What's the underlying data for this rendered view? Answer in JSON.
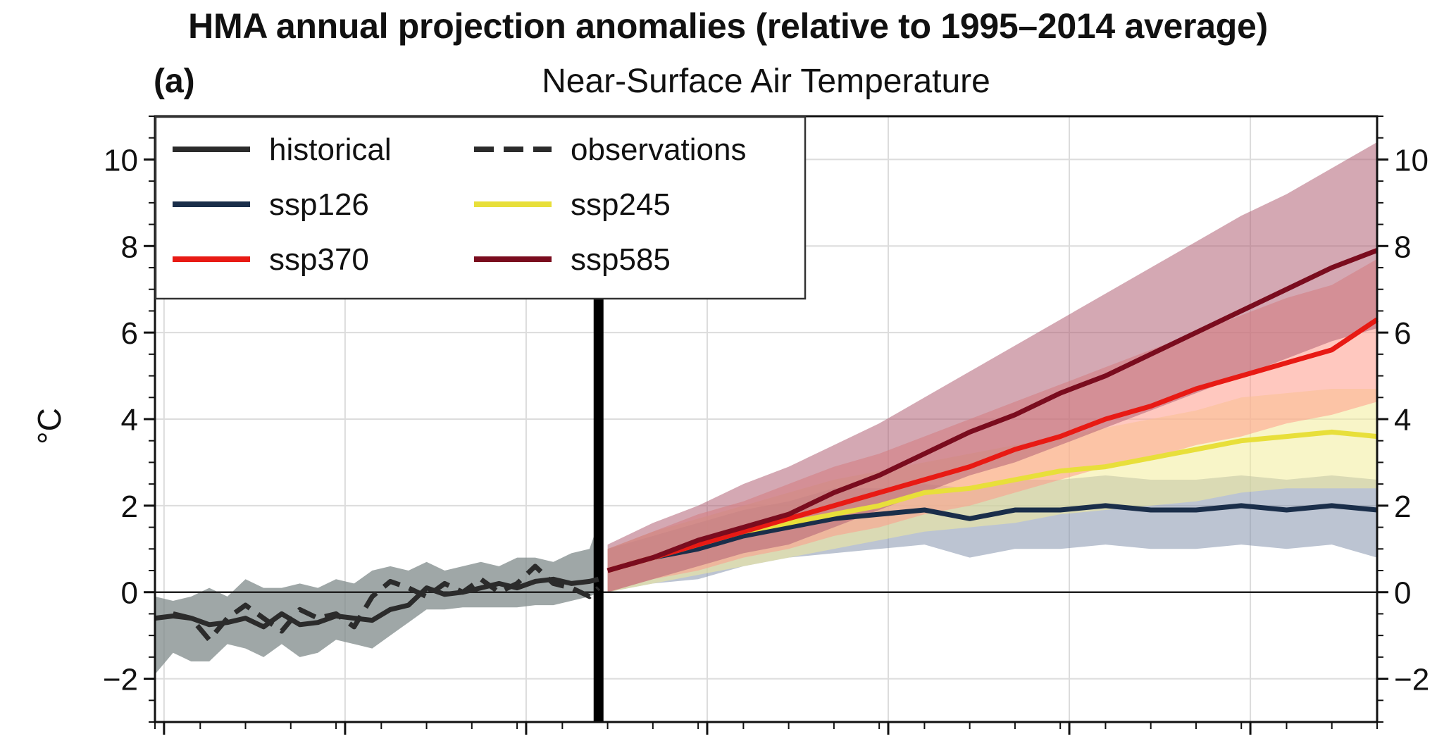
{
  "figure": {
    "title": "HMA annual projection anomalies (relative to 1995–2014 average)",
    "panel_label": "(a)",
    "subtitle": "Near-Surface Air Temperature"
  },
  "chart_data": {
    "type": "line",
    "title": "Near-Surface Air Temperature",
    "xlabel": "",
    "ylabel": "°C",
    "xlim": [
      1965,
      2100
    ],
    "ylim": [
      -3,
      11
    ],
    "yticks": [
      -2,
      0,
      2,
      4,
      6,
      8,
      10
    ],
    "ytick_labels": [
      "−2",
      "0",
      "2",
      "4",
      "6",
      "8",
      "10"
    ],
    "xticks_major": [
      1966,
      1986,
      2006,
      2026,
      2046,
      2066,
      2086
    ],
    "grid": true,
    "zero_line": 0,
    "vertical_marker_x": 2014,
    "legend": {
      "placement": "top-left",
      "columns": 2
    },
    "series": [
      {
        "name": "historical",
        "color": "#2b2b2b",
        "style": "solid",
        "band_color": "#7f8a8a",
        "x": [
          1965,
          1967,
          1969,
          1971,
          1973,
          1975,
          1977,
          1979,
          1981,
          1983,
          1985,
          1987,
          1989,
          1991,
          1993,
          1995,
          1997,
          1999,
          2001,
          2003,
          2005,
          2007,
          2009,
          2011,
          2013,
          2014
        ],
        "y": [
          -0.6,
          -0.55,
          -0.6,
          -0.75,
          -0.7,
          -0.6,
          -0.8,
          -0.5,
          -0.75,
          -0.7,
          -0.55,
          -0.6,
          -0.65,
          -0.4,
          -0.3,
          0.1,
          -0.05,
          0.0,
          0.1,
          0.2,
          0.1,
          0.25,
          0.3,
          0.2,
          0.25,
          0.3
        ],
        "lower": [
          -1.9,
          -1.4,
          -1.6,
          -1.6,
          -1.2,
          -1.3,
          -1.5,
          -1.2,
          -1.5,
          -1.4,
          -1.1,
          -1.2,
          -1.3,
          -1.0,
          -0.7,
          -0.4,
          -0.4,
          -0.35,
          -0.35,
          -0.35,
          -0.35,
          -0.3,
          -0.3,
          -0.2,
          -0.1,
          0.0
        ],
        "upper": [
          -0.1,
          -0.2,
          -0.1,
          0.1,
          -0.1,
          0.3,
          0.1,
          0.1,
          0.2,
          0.1,
          0.3,
          0.2,
          0.5,
          0.6,
          0.5,
          0.7,
          0.5,
          0.6,
          0.7,
          0.6,
          0.8,
          0.8,
          0.7,
          0.9,
          1.0,
          1.6
        ]
      },
      {
        "name": "observations",
        "color": "#2b2b2b",
        "style": "dashed",
        "x": [
          1967,
          1969,
          1971,
          1973,
          1975,
          1977,
          1979,
          1981,
          1983,
          1985,
          1987,
          1989,
          1991,
          1993,
          1995,
          1997,
          1999,
          2001,
          2003,
          2005,
          2007,
          2009,
          2011,
          2013,
          2014
        ],
        "y": [
          -0.5,
          -0.6,
          -1.1,
          -0.6,
          -0.3,
          -0.6,
          -0.9,
          -0.4,
          -0.6,
          -0.5,
          -0.8,
          -0.1,
          0.25,
          0.1,
          -0.1,
          0.2,
          0.0,
          0.3,
          0.0,
          0.2,
          0.6,
          0.2,
          0.1,
          -0.1,
          0.1
        ]
      },
      {
        "name": "ssp126",
        "color": "#1a2e4a",
        "style": "solid",
        "band_color": "#8593ad",
        "x": [
          2015,
          2020,
          2025,
          2030,
          2035,
          2040,
          2045,
          2050,
          2055,
          2060,
          2065,
          2070,
          2075,
          2080,
          2085,
          2090,
          2095,
          2100
        ],
        "y": [
          0.5,
          0.8,
          1.0,
          1.3,
          1.5,
          1.7,
          1.8,
          1.9,
          1.7,
          1.9,
          1.9,
          2.0,
          1.9,
          1.9,
          2.0,
          1.9,
          2.0,
          1.9
        ],
        "lower": [
          0.0,
          0.2,
          0.3,
          0.6,
          0.8,
          0.9,
          1.0,
          1.1,
          0.8,
          1.0,
          1.0,
          1.1,
          1.0,
          1.0,
          1.1,
          1.0,
          1.1,
          0.8
        ],
        "upper": [
          1.0,
          1.3,
          1.6,
          1.9,
          2.1,
          2.4,
          2.4,
          2.5,
          2.4,
          2.6,
          2.6,
          2.7,
          2.6,
          2.6,
          2.7,
          2.6,
          2.7,
          2.6
        ]
      },
      {
        "name": "ssp245",
        "color": "#e8df3a",
        "style": "solid",
        "band_color": "#f2ec9a",
        "x": [
          2015,
          2020,
          2025,
          2030,
          2035,
          2040,
          2045,
          2050,
          2055,
          2060,
          2065,
          2070,
          2075,
          2080,
          2085,
          2090,
          2095,
          2100
        ],
        "y": [
          0.5,
          0.8,
          1.1,
          1.4,
          1.6,
          1.8,
          2.0,
          2.3,
          2.4,
          2.6,
          2.8,
          2.9,
          3.1,
          3.3,
          3.5,
          3.6,
          3.7,
          3.6
        ],
        "lower": [
          0.0,
          0.2,
          0.4,
          0.6,
          0.8,
          1.0,
          1.2,
          1.4,
          1.5,
          1.6,
          1.8,
          1.9,
          2.0,
          2.1,
          2.3,
          2.4,
          2.4,
          2.4
        ],
        "upper": [
          1.0,
          1.4,
          1.7,
          2.0,
          2.3,
          2.6,
          2.8,
          3.0,
          3.2,
          3.4,
          3.6,
          3.8,
          4.0,
          4.2,
          4.5,
          4.6,
          4.7,
          4.7
        ]
      },
      {
        "name": "ssp370",
        "color": "#e81a14",
        "style": "solid",
        "band_color": "#ff9a8a",
        "x": [
          2015,
          2020,
          2025,
          2030,
          2035,
          2040,
          2045,
          2050,
          2055,
          2060,
          2065,
          2070,
          2075,
          2080,
          2085,
          2090,
          2095,
          2100
        ],
        "y": [
          0.5,
          0.8,
          1.1,
          1.4,
          1.7,
          2.0,
          2.3,
          2.6,
          2.9,
          3.3,
          3.6,
          4.0,
          4.3,
          4.7,
          5.0,
          5.3,
          5.6,
          6.3
        ],
        "lower": [
          0.0,
          0.3,
          0.5,
          0.8,
          1.0,
          1.3,
          1.5,
          1.8,
          2.0,
          2.3,
          2.6,
          2.9,
          3.1,
          3.4,
          3.6,
          3.9,
          4.1,
          4.4
        ],
        "upper": [
          1.0,
          1.4,
          1.8,
          2.1,
          2.5,
          2.9,
          3.2,
          3.6,
          4.0,
          4.4,
          4.8,
          5.2,
          5.6,
          6.0,
          6.4,
          6.8,
          7.1,
          7.7
        ]
      },
      {
        "name": "ssp585",
        "color": "#7a0c1e",
        "style": "solid",
        "band_color": "#b06074",
        "x": [
          2015,
          2020,
          2025,
          2030,
          2035,
          2040,
          2045,
          2050,
          2055,
          2060,
          2065,
          2070,
          2075,
          2080,
          2085,
          2090,
          2095,
          2100
        ],
        "y": [
          0.5,
          0.8,
          1.2,
          1.5,
          1.8,
          2.3,
          2.7,
          3.2,
          3.7,
          4.1,
          4.6,
          5.0,
          5.5,
          6.0,
          6.5,
          7.0,
          7.5,
          7.9
        ],
        "lower": [
          0.0,
          0.3,
          0.6,
          0.9,
          1.1,
          1.5,
          1.9,
          2.3,
          2.7,
          3.0,
          3.4,
          3.8,
          4.2,
          4.6,
          5.0,
          5.4,
          5.8,
          6.1
        ],
        "upper": [
          1.1,
          1.6,
          2.0,
          2.5,
          2.9,
          3.4,
          3.9,
          4.5,
          5.1,
          5.7,
          6.3,
          6.9,
          7.5,
          8.1,
          8.7,
          9.2,
          9.8,
          10.4
        ]
      }
    ]
  }
}
